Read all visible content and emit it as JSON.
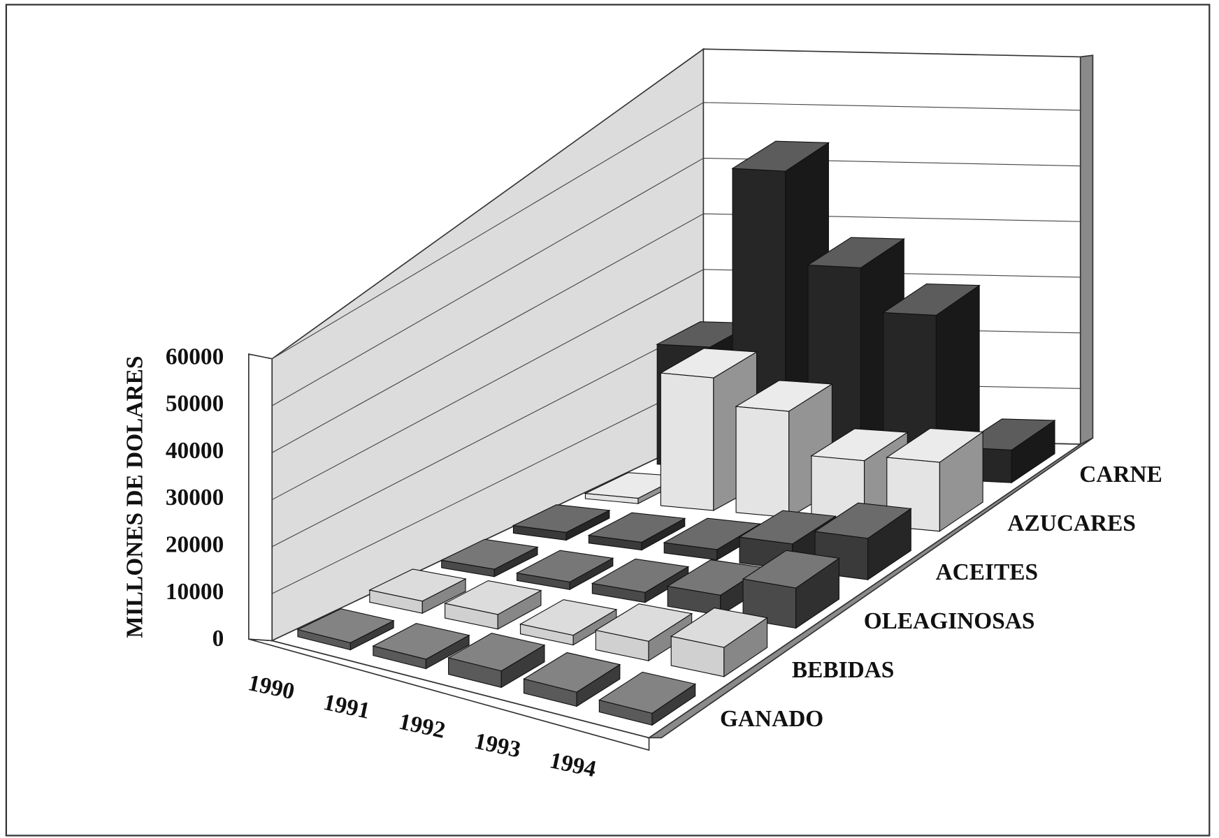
{
  "chart_data": {
    "type": "bar3d",
    "y_label": "MILLONES DE DOLARES",
    "categories": [
      "1990",
      "1991",
      "1992",
      "1993",
      "1994"
    ],
    "series": [
      {
        "name": "GANADO",
        "color": "#5a5a5a",
        "values": [
          1500,
          2000,
          3500,
          3000,
          2500
        ]
      },
      {
        "name": "BEBIDAS",
        "color": "#d0d0d0",
        "values": [
          2500,
          3000,
          2000,
          4000,
          6000
        ]
      },
      {
        "name": "OLEAGINOSAS",
        "color": "#4a4a4a",
        "values": [
          1500,
          1500,
          2000,
          4000,
          8000
        ]
      },
      {
        "name": "ACEITES",
        "color": "#3a3a3a",
        "values": [
          1500,
          1500,
          2000,
          5000,
          8000
        ]
      },
      {
        "name": "AZUCARES",
        "color": "#e4e4e4",
        "values": [
          1000,
          25000,
          20000,
          12000,
          13000
        ]
      },
      {
        "name": "CARNE",
        "color": "#262626",
        "values": [
          22000,
          55000,
          38000,
          30000,
          6000
        ]
      }
    ],
    "ylim": [
      0,
      60000
    ],
    "yticks": [
      0,
      10000,
      20000,
      30000,
      40000,
      50000,
      60000
    ],
    "grid": true
  }
}
